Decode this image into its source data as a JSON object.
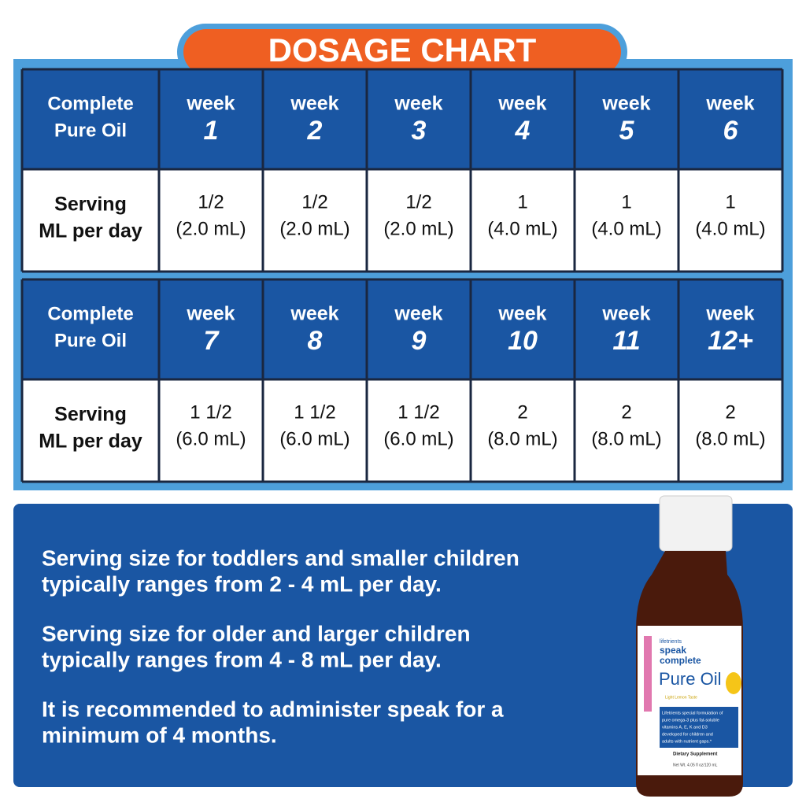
{
  "title": "DOSAGE CHART",
  "tables": [
    {
      "header": {
        "label": [
          "Complete",
          "Pure Oil"
        ],
        "weeks": [
          [
            "week",
            "1"
          ],
          [
            "week",
            "2"
          ],
          [
            "week",
            "3"
          ],
          [
            "week",
            "4"
          ],
          [
            "week",
            "5"
          ],
          [
            "week",
            "6"
          ]
        ]
      },
      "serving": {
        "label": [
          "Serving",
          "ML per day"
        ],
        "cells": [
          [
            "1/2",
            "(2.0 mL)"
          ],
          [
            "1/2",
            "(2.0 mL)"
          ],
          [
            "1/2",
            "(2.0 mL)"
          ],
          [
            "1",
            "(4.0 mL)"
          ],
          [
            "1",
            "(4.0 mL)"
          ],
          [
            "1",
            "(4.0 mL)"
          ]
        ]
      }
    },
    {
      "header": {
        "label": [
          "Complete",
          "Pure Oil"
        ],
        "weeks": [
          [
            "week",
            "7"
          ],
          [
            "week",
            "8"
          ],
          [
            "week",
            "9"
          ],
          [
            "week",
            "10"
          ],
          [
            "week",
            "11"
          ],
          [
            "week",
            "12+"
          ]
        ]
      },
      "serving": {
        "label": [
          "Serving",
          "ML per day"
        ],
        "cells": [
          [
            "1 1/2",
            "(6.0 mL)"
          ],
          [
            "1 1/2",
            "(6.0 mL)"
          ],
          [
            "1 1/2",
            "(6.0 mL)"
          ],
          [
            "2",
            "(8.0 mL)"
          ],
          [
            "2",
            "(8.0 mL)"
          ],
          [
            "2",
            "(8.0 mL)"
          ]
        ]
      }
    }
  ],
  "notes": [
    [
      "Serving size for toddlers and smaller children",
      "typically ranges from 2 - 4 mL per day."
    ],
    [
      "Serving size for older and larger children",
      "typically ranges from 4 - 8 mL per day."
    ],
    [
      "It is recommended to administer speak for a",
      "minimum of 4 months."
    ]
  ],
  "product": {
    "brand": "lifetrients",
    "line1": "speak",
    "line2": "complete",
    "name": "Pure Oil",
    "taste": "Light Lemon Taste",
    "description": [
      "Lifetrients special formulation of",
      "pure omega-3 plus fat-soluble",
      "vitamins A, E, K and D3",
      "developed for children and",
      "adults with nutrient gaps.*"
    ],
    "supplement": "Dietary Supplement",
    "net": "Net Wt. 4.05 fl oz/120 mL"
  }
}
